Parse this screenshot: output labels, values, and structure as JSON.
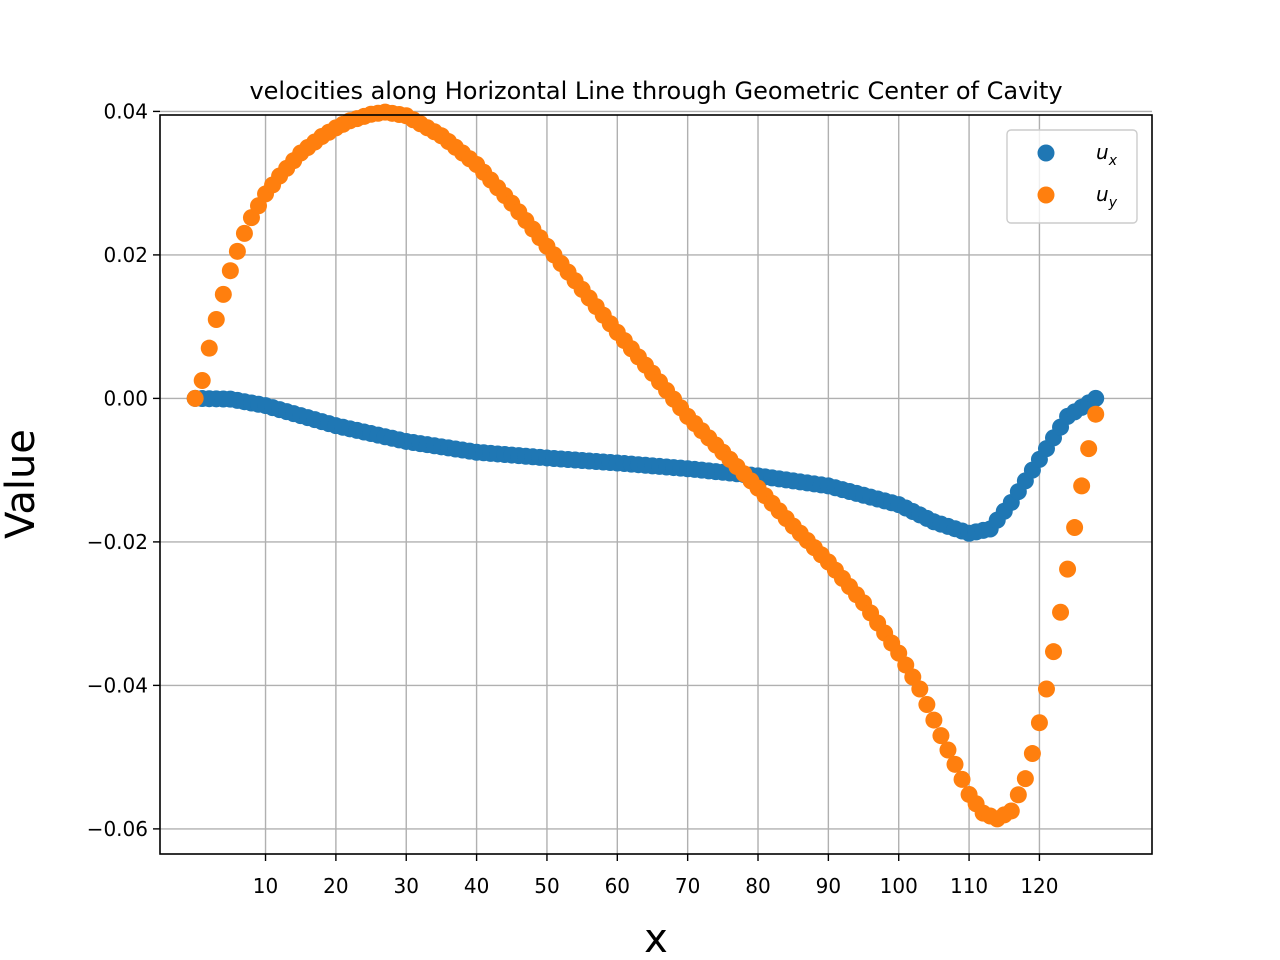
{
  "chart_data": {
    "type": "scatter",
    "title": "velocities along Horizontal Line through Geometric Center of Cavity",
    "xlabel": "x",
    "ylabel": "Value",
    "xlim": [
      -5,
      136
    ],
    "ylim": [
      -0.0635,
      0.0395
    ],
    "x_ticks": [
      10,
      20,
      30,
      40,
      50,
      60,
      70,
      80,
      90,
      100,
      110,
      120
    ],
    "y_ticks": [
      0.04,
      0.02,
      0.0,
      -0.02,
      -0.04,
      -0.06
    ],
    "y_tick_labels": [
      "0.04",
      "0.02",
      "0.00",
      "−0.02",
      "−0.04",
      "−0.06"
    ],
    "grid": true,
    "legend_position": "top-right",
    "series": [
      {
        "name": "u",
        "subscript": "x",
        "color": "#1f77b4",
        "keypoints_x": [
          0,
          5,
          10,
          20,
          30,
          40,
          50,
          60,
          70,
          80,
          90,
          100,
          105,
          110,
          113,
          116,
          120,
          124,
          128
        ],
        "keypoints_y": [
          0.0,
          -0.0001,
          -0.001,
          -0.0038,
          -0.006,
          -0.0075,
          -0.0083,
          -0.009,
          -0.0098,
          -0.0108,
          -0.0122,
          -0.0148,
          -0.0172,
          -0.0188,
          -0.0182,
          -0.0145,
          -0.0085,
          -0.0025,
          0.0
        ]
      },
      {
        "name": "u",
        "subscript": "y",
        "color": "#ff7f0e",
        "keypoints_x": [
          0,
          1,
          2,
          3,
          4,
          5,
          6,
          7,
          8,
          10,
          12,
          15,
          18,
          20,
          22,
          25,
          27,
          30,
          35,
          40,
          45,
          50,
          55,
          60,
          65,
          70,
          75,
          80,
          85,
          90,
          95,
          100,
          103,
          106,
          108,
          110,
          112,
          114,
          116,
          118,
          119,
          120,
          121,
          122,
          123,
          124,
          125,
          126,
          127,
          128
        ],
        "keypoints_y": [
          0.0,
          0.0025,
          0.007,
          0.011,
          0.0145,
          0.0178,
          0.0205,
          0.023,
          0.0252,
          0.0285,
          0.031,
          0.0342,
          0.0365,
          0.0377,
          0.0387,
          0.0396,
          0.0399,
          0.0394,
          0.0366,
          0.0326,
          0.0272,
          0.0212,
          0.0152,
          0.0092,
          0.0035,
          -0.0025,
          -0.0075,
          -0.0125,
          -0.0178,
          -0.0228,
          -0.0285,
          -0.0355,
          -0.0405,
          -0.047,
          -0.051,
          -0.0552,
          -0.0578,
          -0.0586,
          -0.0575,
          -0.053,
          -0.0495,
          -0.0452,
          -0.0405,
          -0.0353,
          -0.0298,
          -0.0238,
          -0.018,
          -0.0122,
          -0.007,
          -0.0022
        ]
      }
    ]
  }
}
